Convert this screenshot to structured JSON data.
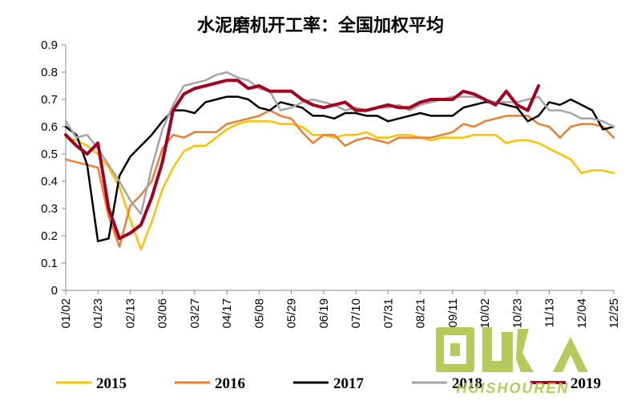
{
  "chart_data": {
    "type": "line",
    "title": "水泥磨机开工率：全国加权平均",
    "xlabel": "",
    "ylabel": "",
    "ylim": [
      0,
      0.9
    ],
    "yticks": [
      "0",
      "0.1",
      "0.2",
      "0.3",
      "0.4",
      "0.5",
      "0.6",
      "0.7",
      "0.8",
      "0.9"
    ],
    "xticks": [
      "01/02",
      "01/23",
      "02/13",
      "03/06",
      "03/27",
      "04/17",
      "05/08",
      "05/29",
      "06/19",
      "07/10",
      "07/31",
      "08/21",
      "09/11",
      "10/02",
      "10/23",
      "11/13",
      "12/04",
      "12/25"
    ],
    "week_count": 52,
    "grid": false,
    "legend_position": "bottom",
    "series": [
      {
        "name": "2015",
        "color": "#FFC000",
        "values": [
          0.56,
          0.55,
          0.53,
          0.5,
          0.45,
          0.38,
          0.26,
          0.15,
          0.25,
          0.37,
          0.45,
          0.51,
          0.53,
          0.53,
          0.56,
          0.59,
          0.61,
          0.62,
          0.62,
          0.62,
          0.61,
          0.61,
          0.6,
          0.57,
          0.57,
          0.56,
          0.57,
          0.57,
          0.58,
          0.56,
          0.56,
          0.57,
          0.57,
          0.56,
          0.55,
          0.56,
          0.56,
          0.56,
          0.57,
          0.57,
          0.57,
          0.54,
          0.55,
          0.55,
          0.54,
          0.52,
          0.5,
          0.48,
          0.43,
          0.44,
          0.44,
          0.43
        ]
      },
      {
        "name": "2016",
        "color": "#ED7D31",
        "values": [
          0.48,
          0.47,
          0.46,
          0.45,
          0.27,
          0.16,
          0.31,
          0.35,
          0.4,
          0.52,
          0.57,
          0.56,
          0.58,
          0.58,
          0.58,
          0.61,
          0.62,
          0.63,
          0.64,
          0.66,
          0.64,
          0.63,
          0.58,
          0.54,
          0.57,
          0.57,
          0.53,
          0.55,
          0.56,
          0.55,
          0.54,
          0.56,
          0.56,
          0.56,
          0.56,
          0.57,
          0.58,
          0.61,
          0.6,
          0.62,
          0.63,
          0.64,
          0.64,
          0.64,
          0.61,
          0.6,
          0.56,
          0.6,
          0.61,
          0.61,
          0.6,
          0.56
        ]
      },
      {
        "name": "2017",
        "color": "#000000",
        "values": [
          0.6,
          0.57,
          0.46,
          0.18,
          0.19,
          0.42,
          0.49,
          0.53,
          0.57,
          0.62,
          0.66,
          0.66,
          0.65,
          0.69,
          0.7,
          0.71,
          0.71,
          0.7,
          0.67,
          0.66,
          0.69,
          0.68,
          0.67,
          0.64,
          0.64,
          0.63,
          0.65,
          0.65,
          0.64,
          0.64,
          0.62,
          0.63,
          0.64,
          0.65,
          0.64,
          0.64,
          0.64,
          0.67,
          0.68,
          0.69,
          0.69,
          0.68,
          0.67,
          0.62,
          0.64,
          0.69,
          0.68,
          0.7,
          0.68,
          0.66,
          0.59,
          0.6
        ]
      },
      {
        "name": "2018",
        "color": "#A5A5A5",
        "values": [
          0.62,
          0.56,
          0.57,
          0.52,
          0.46,
          0.4,
          0.33,
          0.28,
          0.45,
          0.59,
          0.68,
          0.75,
          0.76,
          0.77,
          0.79,
          0.8,
          0.78,
          0.77,
          0.74,
          0.73,
          0.66,
          0.67,
          0.69,
          0.7,
          0.69,
          0.68,
          0.66,
          0.67,
          0.66,
          0.67,
          0.67,
          0.68,
          0.66,
          0.68,
          0.69,
          0.7,
          0.71,
          0.71,
          0.71,
          0.7,
          0.69,
          0.69,
          0.69,
          0.7,
          0.71,
          0.66,
          0.66,
          0.65,
          0.63,
          0.63,
          0.62,
          0.6
        ]
      },
      {
        "name": "2019",
        "color": "#A50021",
        "values": [
          0.57,
          0.53,
          0.5,
          0.54,
          0.3,
          0.19,
          0.21,
          0.24,
          0.34,
          0.47,
          0.66,
          0.72,
          0.74,
          0.75,
          0.76,
          0.77,
          0.77,
          0.74,
          0.75,
          0.73,
          0.73,
          0.73,
          0.7,
          0.68,
          0.67,
          0.68,
          0.69,
          0.66,
          0.66,
          0.67,
          0.68,
          0.67,
          0.67,
          0.69,
          0.7,
          0.7,
          0.7,
          0.73,
          0.72,
          0.7,
          0.68,
          0.73,
          0.68,
          0.66,
          0.75
        ]
      }
    ]
  },
  "watermark": {
    "main_text": "回收",
    "sub_text": "HUISHOUREN",
    "color": "#a7c33f"
  }
}
